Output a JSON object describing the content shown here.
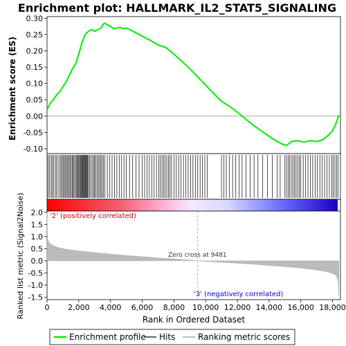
{
  "title": "Enrichment plot: HALLMARK_IL2_STAT5_SIGNALING",
  "chart_data": [
    {
      "type": "line",
      "name": "enrichment-profile",
      "ylabel": "Enrichment score (ES)",
      "xlim": [
        0,
        18500
      ],
      "ylim": [
        -0.115,
        0.305
      ],
      "yticks": [
        -0.1,
        -0.05,
        0.0,
        0.05,
        0.1,
        0.15,
        0.2,
        0.25,
        0.3
      ],
      "ytick_labels": [
        "-0.10",
        "-0.05",
        "0.00",
        "0.05",
        "0.10",
        "0.15",
        "0.20",
        "0.25",
        "0.30"
      ],
      "color": "#00ee00",
      "x": [
        0,
        200,
        400,
        600,
        800,
        1000,
        1200,
        1400,
        1600,
        1800,
        2000,
        2200,
        2400,
        2600,
        2800,
        3000,
        3200,
        3400,
        3600,
        3800,
        4000,
        4200,
        4400,
        4600,
        4800,
        5000,
        5500,
        6000,
        6500,
        7000,
        7500,
        8000,
        8500,
        9000,
        9500,
        10000,
        10500,
        11000,
        11500,
        12000,
        12500,
        13000,
        13500,
        14000,
        14400,
        14800,
        15100,
        15400,
        15800,
        16200,
        16600,
        17000,
        17400,
        17700,
        18000,
        18200,
        18400
      ],
      "y": [
        0.02,
        0.04,
        0.05,
        0.065,
        0.075,
        0.09,
        0.105,
        0.125,
        0.145,
        0.16,
        0.19,
        0.225,
        0.25,
        0.26,
        0.265,
        0.26,
        0.265,
        0.27,
        0.285,
        0.28,
        0.275,
        0.268,
        0.27,
        0.272,
        0.268,
        0.27,
        0.258,
        0.245,
        0.232,
        0.218,
        0.21,
        0.19,
        0.168,
        0.145,
        0.12,
        0.095,
        0.07,
        0.045,
        0.03,
        0.012,
        -0.008,
        -0.028,
        -0.045,
        -0.062,
        -0.075,
        -0.085,
        -0.09,
        -0.078,
        -0.075,
        -0.08,
        -0.075,
        -0.078,
        -0.072,
        -0.06,
        -0.045,
        -0.025,
        0.003
      ]
    },
    {
      "type": "heatmap",
      "name": "hits-and-ranking-bar",
      "xlim": [
        0,
        18500
      ],
      "hits": [
        60,
        160,
        260,
        320,
        420,
        520,
        600,
        700,
        800,
        880,
        960,
        1020,
        1100,
        1160,
        1240,
        1300,
        1380,
        1440,
        1500,
        1580,
        1640,
        1700,
        1780,
        1840,
        1900,
        1960,
        2000,
        2060,
        2100,
        2150,
        2200,
        2240,
        2280,
        2330,
        2380,
        2420,
        2470,
        2520,
        2560,
        2610,
        2680,
        2760,
        2850,
        2940,
        3000,
        3080,
        3160,
        3240,
        3320,
        3400,
        3480,
        3560,
        3640,
        3800,
        3950,
        4100,
        4250,
        4400,
        4550,
        4700,
        4850,
        5000,
        5200,
        5400,
        5600,
        5800,
        6000,
        6150,
        6300,
        6450,
        6600,
        6750,
        6900,
        7050,
        7150,
        7250,
        7350,
        7450,
        7550,
        7650,
        7750,
        7850,
        8000,
        8150,
        8300,
        8450,
        8600,
        8750,
        8900,
        9050,
        9200,
        9350,
        9500,
        9650,
        9800,
        9950,
        10100,
        11000,
        11150,
        11300,
        11500,
        11700,
        11900,
        12100,
        12300,
        12550,
        12800,
        13050,
        13300,
        13600,
        13900,
        14200,
        14500,
        14700,
        15000,
        15100,
        15200,
        15300,
        15400,
        15500,
        15600,
        15700,
        15800,
        15900,
        16000,
        16150,
        16300,
        16450,
        16600,
        16750,
        16900,
        17050,
        17200,
        17350,
        17500,
        17650,
        17800,
        17950,
        18050,
        18150,
        18250,
        18350
      ]
    },
    {
      "type": "area",
      "name": "ranked-list-metric",
      "ylabel": "Ranked list metric (Signal2Noise)",
      "xlabel": "Rank in Ordered Dataset",
      "xlim": [
        0,
        18500
      ],
      "ylim": [
        -1.6,
        2.05
      ],
      "yticks": [
        -1.5,
        -1.0,
        -0.5,
        0.0,
        0.5,
        1.0,
        1.5,
        2.0
      ],
      "ytick_labels": [
        "-1.5",
        "-1.0",
        "-0.5",
        "0.0",
        "0.5",
        "1.0",
        "1.5",
        "2.0"
      ],
      "xticks": [
        0,
        2000,
        4000,
        6000,
        8000,
        10000,
        12000,
        14000,
        16000,
        18000
      ],
      "xtick_labels": [
        "0",
        "2,000",
        "4,000",
        "6,000",
        "8,000",
        "10,000",
        "12,000",
        "14,000",
        "16,000",
        "18,000"
      ],
      "x": [
        0,
        30,
        100,
        200,
        400,
        700,
        1000,
        1500,
        2000,
        3000,
        4000,
        5000,
        6000,
        7000,
        8000,
        9000,
        9481,
        10000,
        11000,
        12000,
        13000,
        14000,
        15000,
        16000,
        16800,
        17400,
        17800,
        18100,
        18250,
        18350,
        18400
      ],
      "y": [
        2.0,
        0.9,
        0.8,
        0.7,
        0.62,
        0.55,
        0.5,
        0.45,
        0.41,
        0.34,
        0.28,
        0.22,
        0.17,
        0.12,
        0.08,
        0.03,
        0.0,
        -0.02,
        -0.06,
        -0.1,
        -0.14,
        -0.19,
        -0.24,
        -0.3,
        -0.36,
        -0.42,
        -0.48,
        -0.55,
        -0.62,
        -0.8,
        -1.45
      ],
      "zero_cross": 9481,
      "zero_cross_label": "Zero cross at 9481",
      "positive_label": "'2' (positively correlated)",
      "negative_label": "'3' (negatively correlated)"
    }
  ],
  "legend": {
    "position": "bottom",
    "items": [
      {
        "label": "Enrichment profile",
        "color": "#00ee00"
      },
      {
        "label": "Hits",
        "color": "#000000"
      },
      {
        "label": "Ranking metric scores",
        "color": "#bbbbbb"
      }
    ]
  }
}
